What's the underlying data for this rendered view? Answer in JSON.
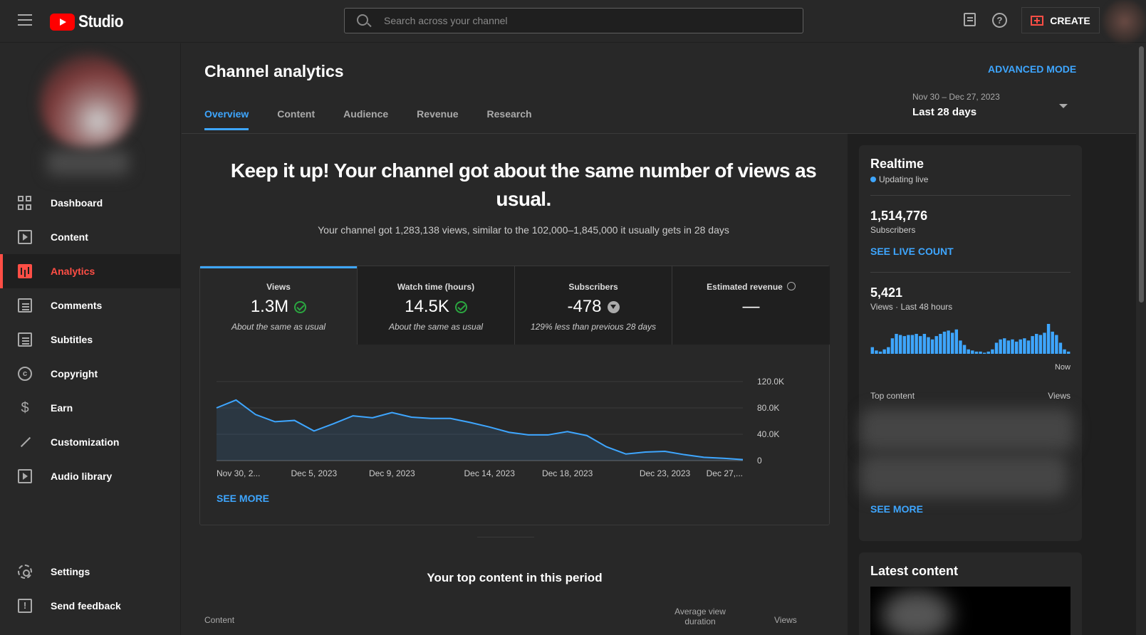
{
  "header": {
    "logo_text": "Studio",
    "search_placeholder": "Search across your channel",
    "help_glyph": "?",
    "create_label": "CREATE"
  },
  "sidebar": {
    "items": [
      {
        "label": "Dashboard",
        "icon": "dashboard-icon"
      },
      {
        "label": "Content",
        "icon": "content-icon"
      },
      {
        "label": "Analytics",
        "icon": "analytics-icon",
        "active": true
      },
      {
        "label": "Comments",
        "icon": "comments-icon"
      },
      {
        "label": "Subtitles",
        "icon": "subtitles-icon"
      },
      {
        "label": "Copyright",
        "icon": "copyright-icon"
      },
      {
        "label": "Earn",
        "icon": "dollar-icon"
      },
      {
        "label": "Customization",
        "icon": "wand-icon"
      },
      {
        "label": "Audio library",
        "icon": "audio-library-icon"
      }
    ],
    "bottom_items": [
      {
        "label": "Settings",
        "icon": "gear-icon"
      },
      {
        "label": "Send feedback",
        "icon": "feedback-icon"
      }
    ],
    "copyright_glyph": "c",
    "earn_glyph": "$",
    "feedback_glyph": "!"
  },
  "main": {
    "title": "Channel analytics",
    "advanced_mode": "ADVANCED MODE",
    "tabs": [
      "Overview",
      "Content",
      "Audience",
      "Revenue",
      "Research"
    ],
    "active_tab": "Overview",
    "date_range": {
      "sub": "Nov 30 – Dec 27, 2023",
      "main": "Last 28 days"
    },
    "headline": "Keep it up! Your channel got about the same number of views as usual.",
    "subline": "Your channel got 1,283,138 views, similar to the 102,000–1,845,000 it usually gets in 28 days",
    "kpis": [
      {
        "label": "Views",
        "value": "1.3M",
        "note": "About the same as usual",
        "status": "check"
      },
      {
        "label": "Watch time (hours)",
        "value": "14.5K",
        "note": "About the same as usual",
        "status": "check"
      },
      {
        "label": "Subscribers",
        "value": "-478",
        "note": "129% less than previous 28 days",
        "status": "down"
      },
      {
        "label": "Estimated revenue",
        "value": "—",
        "note": "",
        "status": "clock"
      }
    ],
    "see_more": "SEE MORE",
    "top_content_title": "Your top content in this period",
    "table_headers": {
      "content": "Content",
      "avg_view_duration": "Average view duration",
      "views": "Views"
    }
  },
  "chart_data": {
    "type": "area",
    "x": [
      "Nov 30, 2023",
      "Dec 1",
      "Dec 2",
      "Dec 3",
      "Dec 4",
      "Dec 5, 2023",
      "Dec 6",
      "Dec 7",
      "Dec 8",
      "Dec 9, 2023",
      "Dec 10",
      "Dec 11",
      "Dec 12",
      "Dec 13",
      "Dec 14, 2023",
      "Dec 15",
      "Dec 16",
      "Dec 17",
      "Dec 18, 2023",
      "Dec 19",
      "Dec 20",
      "Dec 21",
      "Dec 22",
      "Dec 23, 2023",
      "Dec 24",
      "Dec 25",
      "Dec 26",
      "Dec 27, 2023"
    ],
    "x_tick_labels": [
      "Nov 30, 2...",
      "Dec 5, 2023",
      "Dec 9, 2023",
      "Dec 14, 2023",
      "Dec 18, 2023",
      "Dec 23, 2023",
      "Dec 27,..."
    ],
    "x_tick_index": [
      0,
      5,
      9,
      14,
      18,
      23,
      27
    ],
    "values": [
      80000,
      92000,
      70000,
      59000,
      61000,
      45000,
      56000,
      68000,
      65000,
      73000,
      66000,
      64000,
      64000,
      58000,
      51000,
      43000,
      39000,
      39000,
      44000,
      38000,
      21000,
      10000,
      13000,
      14000,
      9000,
      5000,
      3500,
      1500
    ],
    "y_ticks": [
      "120.0K",
      "80.0K",
      "40.0K",
      "0"
    ],
    "ylim": [
      0,
      120000
    ],
    "color": "#3ea6ff"
  },
  "realtime": {
    "title": "Realtime",
    "live_label": "Updating live",
    "subscribers_value": "1,514,776",
    "subscribers_label": "Subscribers",
    "see_live_count": "SEE LIVE COUNT",
    "views_value": "5,421",
    "views_label": "Views · Last 48 hours",
    "now_label": "Now",
    "top_content_label": "Top content",
    "views_col_label": "Views",
    "see_more": "SEE MORE",
    "bars": [
      6,
      3,
      2,
      4,
      6,
      14,
      18,
      17,
      16,
      17,
      17,
      18,
      16,
      18,
      15,
      13,
      16,
      18,
      20,
      21,
      19,
      22,
      12,
      8,
      4,
      3,
      2,
      2,
      1,
      2,
      4,
      10,
      13,
      14,
      12,
      13,
      11,
      13,
      14,
      12,
      16,
      18,
      17,
      19,
      27,
      20,
      17,
      10,
      4,
      2
    ]
  },
  "latest": {
    "title": "Latest content"
  },
  "colors": {
    "accent": "#3ea6ff",
    "brand": "#ff0000",
    "active_nav": "#ff4e45",
    "positive": "#2ba640"
  }
}
